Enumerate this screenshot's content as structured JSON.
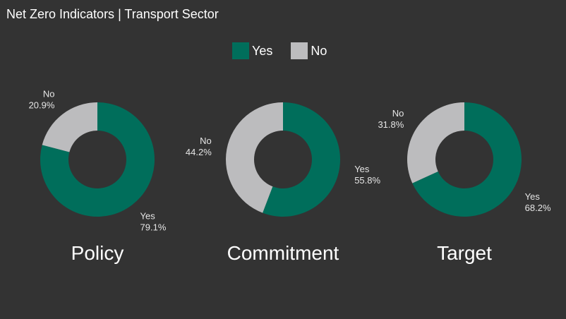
{
  "title": "Net Zero Indicators | Transport Sector",
  "legend": [
    {
      "label": "Yes",
      "color": "#006e5b"
    },
    {
      "label": "No",
      "color": "#bcbcbe"
    }
  ],
  "chart_data": [
    {
      "type": "pie",
      "title": "Policy",
      "categories": [
        "Yes",
        "No"
      ],
      "values": [
        79.1,
        20.9
      ],
      "labels": [
        "79.1%",
        "20.9%"
      ],
      "colors": [
        "#006e5b",
        "#bcbcbe"
      ]
    },
    {
      "type": "pie",
      "title": "Commitment",
      "categories": [
        "Yes",
        "No"
      ],
      "values": [
        55.8,
        44.2
      ],
      "labels": [
        "55.8%",
        "44.2%"
      ],
      "colors": [
        "#006e5b",
        "#bcbcbe"
      ]
    },
    {
      "type": "pie",
      "title": "Target",
      "categories": [
        "Yes",
        "No"
      ],
      "values": [
        68.2,
        31.8
      ],
      "labels": [
        "68.2%",
        "31.8%"
      ],
      "colors": [
        "#006e5b",
        "#bcbcbe"
      ]
    }
  ]
}
